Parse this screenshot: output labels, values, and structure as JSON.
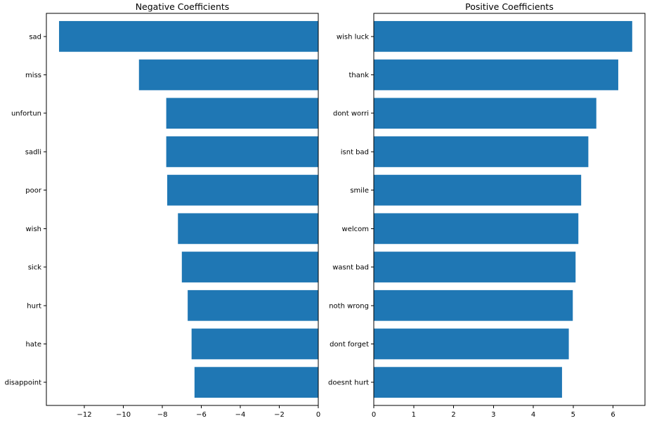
{
  "chart_data": [
    {
      "type": "bar",
      "orientation": "horizontal",
      "title": "Negative Coefficients",
      "categories": [
        "sad",
        "miss",
        "unfortun",
        "sadli",
        "poor",
        "wish",
        "sick",
        "hurt",
        "hate",
        "disappoint"
      ],
      "values": [
        -13.3,
        -9.2,
        -7.8,
        -7.8,
        -7.75,
        -7.2,
        -7.0,
        -6.7,
        -6.5,
        -6.35
      ],
      "xticks": [
        -12,
        -10,
        -8,
        -6,
        -4,
        -2,
        0
      ],
      "xtick_labels": [
        "−12",
        "−10",
        "−8",
        "−6",
        "−4",
        "−2",
        "0"
      ],
      "xlim": [
        -13.95,
        0
      ],
      "bar_color": "#1f77b4",
      "grid": false
    },
    {
      "type": "bar",
      "orientation": "horizontal",
      "title": "Positive Coefficients",
      "categories": [
        "wish luck",
        "thank",
        "dont worri",
        "isnt bad",
        "smile",
        "welcom",
        "wasnt bad",
        "noth wrong",
        "dont forget",
        "doesnt hurt"
      ],
      "values": [
        6.48,
        6.13,
        5.58,
        5.38,
        5.2,
        5.13,
        5.06,
        4.99,
        4.89,
        4.72
      ],
      "xticks": [
        0,
        1,
        2,
        3,
        4,
        5,
        6
      ],
      "xtick_labels": [
        "0",
        "1",
        "2",
        "3",
        "4",
        "5",
        "6"
      ],
      "xlim": [
        0,
        6.8
      ],
      "bar_color": "#1f77b4",
      "grid": false
    }
  ]
}
